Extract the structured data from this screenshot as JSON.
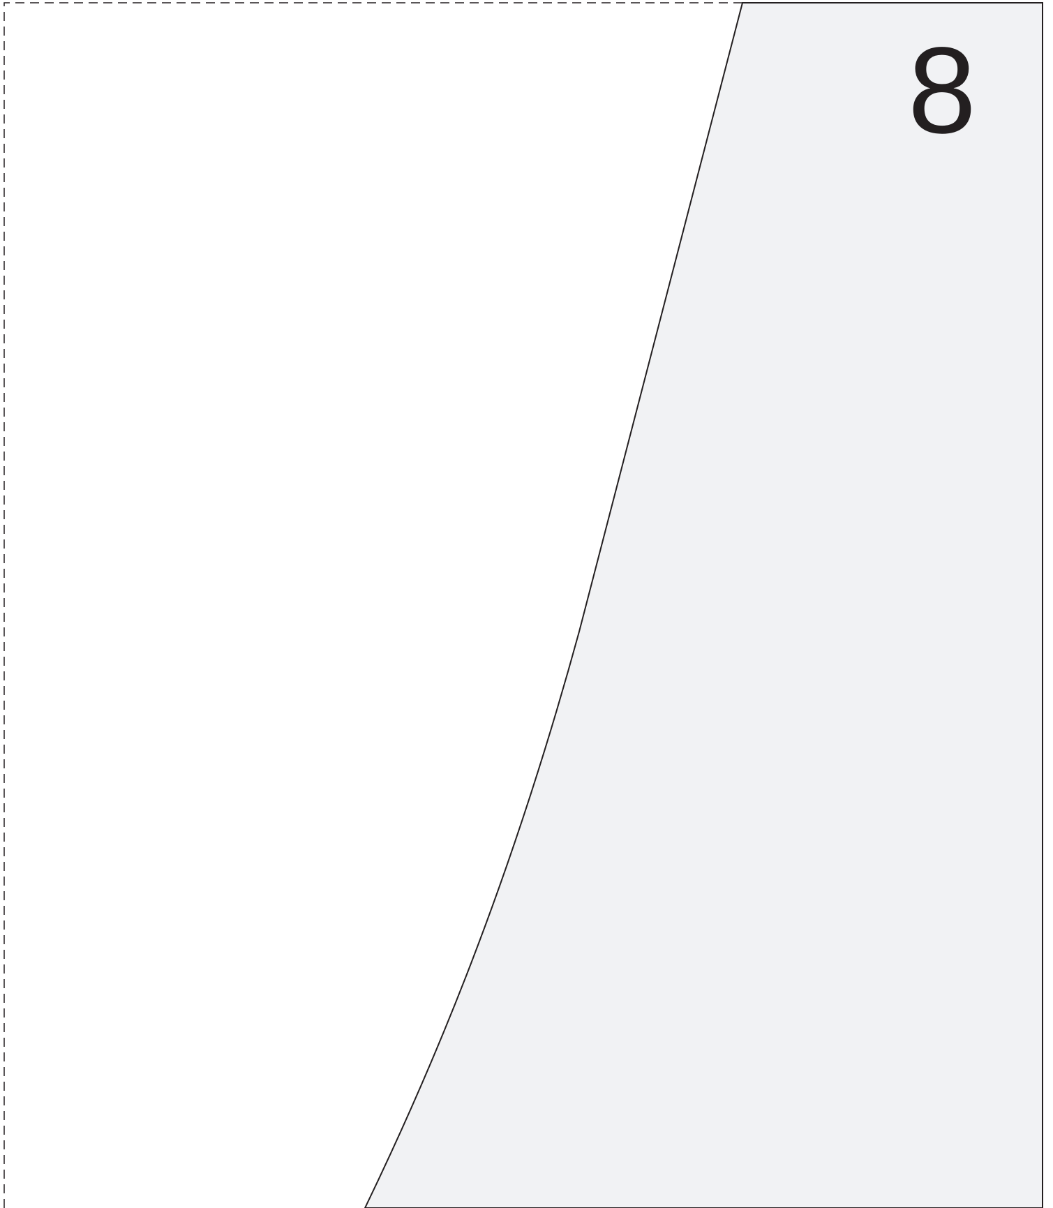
{
  "page": {
    "number": "8"
  },
  "colors": {
    "background": "#ffffff",
    "panel_fill": "#f1f2f4",
    "outline": "#231f20",
    "text": "#231f20"
  }
}
